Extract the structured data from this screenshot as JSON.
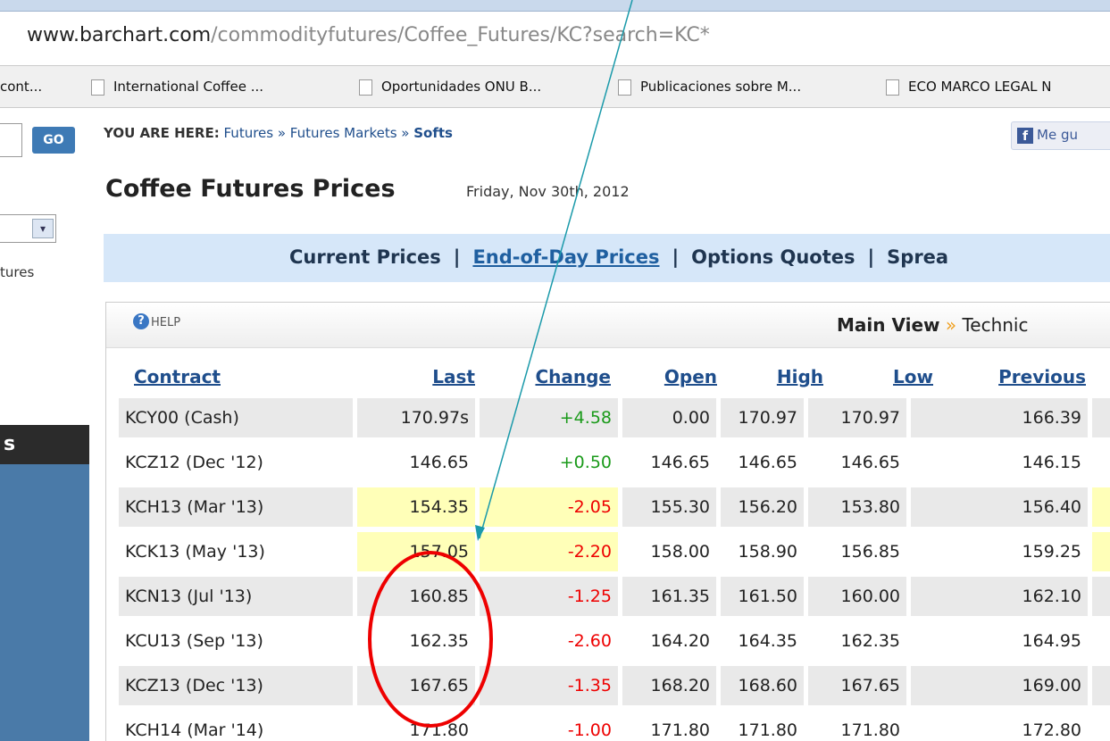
{
  "address_bar": {
    "domain": "www.barchart.com",
    "path": "/commodityfutures/Coffee_Futures/KC?search=KC*"
  },
  "bookmarks": [
    "cont...",
    "International Coffee ...",
    "Oportunidades ONU B...",
    "Publicaciones sobre M...",
    "ECO MARCO LEGAL N"
  ],
  "sidebar": {
    "go_button": "GO",
    "label": "tures",
    "dark_bar": "s"
  },
  "breadcrumb": {
    "prefix": "YOU ARE HERE:",
    "trail": "Futures » Futures Markets » ",
    "current": "Softs"
  },
  "like_button": "Me gu",
  "page_title": "Coffee Futures Prices",
  "date": "Friday, Nov 30th, 2012",
  "nav": [
    "Current Prices",
    "End-of-Day Prices",
    "Options Quotes",
    "Sprea"
  ],
  "nav_separator": "|",
  "panel": {
    "help": "HELP",
    "view": "Main View",
    "view_arrow": "»",
    "other_view": "Technic"
  },
  "table": {
    "headers": [
      "Contract",
      "Last",
      "Change",
      "Open",
      "High",
      "Low",
      "Previous"
    ],
    "rows": [
      [
        "KCY00 (Cash)",
        "170.97s",
        "+4.58",
        "0.00",
        "170.97",
        "170.97",
        "166.39"
      ],
      [
        "KCZ12 (Dec '12)",
        "146.65",
        "+0.50",
        "146.65",
        "146.65",
        "146.65",
        "146.15"
      ],
      [
        "KCH13 (Mar '13)",
        "154.35",
        "-2.05",
        "155.30",
        "156.20",
        "153.80",
        "156.40"
      ],
      [
        "KCK13 (May '13)",
        "157.05",
        "-2.20",
        "158.00",
        "158.90",
        "156.85",
        "159.25"
      ],
      [
        "KCN13 (Jul '13)",
        "160.85",
        "-1.25",
        "161.35",
        "161.50",
        "160.00",
        "162.10"
      ],
      [
        "KCU13 (Sep '13)",
        "162.35",
        "-2.60",
        "164.20",
        "164.35",
        "162.35",
        "164.95"
      ],
      [
        "KCZ13 (Dec '13)",
        "167.65",
        "-1.35",
        "168.20",
        "168.60",
        "167.65",
        "169.00"
      ],
      [
        "KCH14 (Mar '14)",
        "171.80",
        "-1.00",
        "171.80",
        "171.80",
        "171.80",
        "172.80"
      ]
    ]
  }
}
